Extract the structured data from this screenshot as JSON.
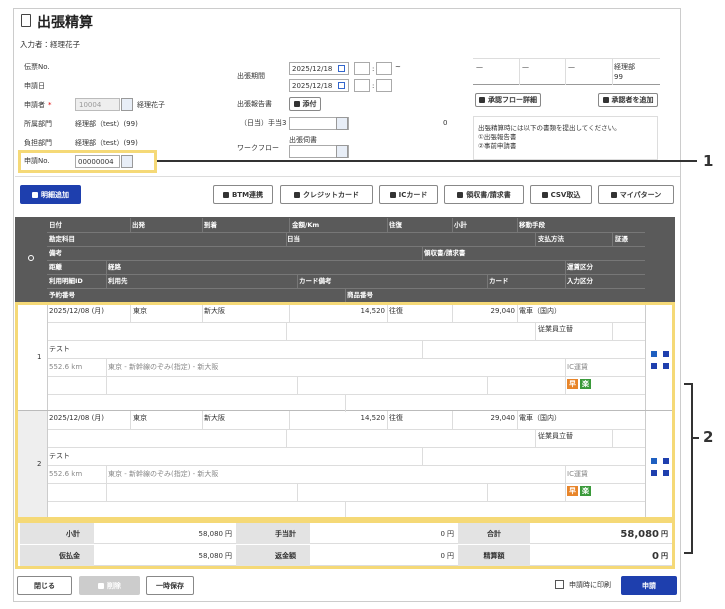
{
  "header": {
    "title": "出張精算",
    "entered_by": "入力者：経理花子"
  },
  "form": {
    "slip_no_label": "伝票No.",
    "apply_date_label": "申請日",
    "applicant_label": "申請者",
    "required_mark": "*",
    "applicant_code": "10004",
    "applicant_name": "経理花子",
    "dept_label": "所属部門",
    "dept_value": "経理部（test）(99)",
    "charge_dept_label": "負担部門",
    "charge_dept_value": "経理部（test）(99)",
    "app_no_label": "申請No.",
    "app_no_value": "00000004",
    "period_label": "出張期間",
    "period_start": "2025/12/18",
    "period_end": "2025/12/18",
    "time_sep": ":",
    "range_sep": "~",
    "report_label": "出張報告書",
    "attach_button": "添付",
    "allowance_label": "（日当）手当3",
    "allowance_value": "0",
    "workflow_label": "ワークフロー",
    "workflow_name": "出張伺書"
  },
  "approval": {
    "steps": [
      "—",
      "—",
      "—"
    ],
    "approver_dept": "経理部",
    "approver_code": "99",
    "detail_button": "承認フロー詳細",
    "add_button": "承認者を追加",
    "notes": [
      "出張精算時には以下の書類を提出してください。",
      "①出張報告書",
      "②事前申請書"
    ]
  },
  "callouts": [
    "1",
    "2"
  ],
  "toolbar": {
    "add_button": "明細追加",
    "buttons": [
      "BTM連携",
      "クレジットカード",
      "ICカード",
      "領収書/請求書",
      "CSV取込",
      "マイパターン"
    ]
  },
  "table": {
    "header_rows": [
      [
        "日付",
        "出発",
        "到着",
        "金額/Km",
        "往復",
        "小計",
        "移動手段"
      ],
      [
        "勘定科目",
        "日当",
        "支払方法",
        "証憑"
      ],
      [
        "備考",
        "領収書/請求書"
      ],
      [
        "距離",
        "経路",
        "運賃区分"
      ],
      [
        "利用明細ID",
        "利用先",
        "カード備考",
        "カード",
        "入力区分"
      ],
      [
        "予約番号",
        "商品番号"
      ]
    ],
    "rows": [
      {
        "index": "1",
        "date": "2025/12/08 (月)",
        "from": "東京",
        "to": "新大阪",
        "amount": "14,520",
        "trip": "往復",
        "subtotal": "29,040",
        "transport": "電車（国内）",
        "payment": "従業員立替",
        "memo": "テスト",
        "distance": "552.6 km",
        "route": "東京 - 新幹線のぞみ(指定) - 新大阪",
        "fare_type": "IC運賃",
        "badges": [
          "早",
          "楽"
        ]
      },
      {
        "index": "2",
        "date": "2025/12/08 (月)",
        "from": "東京",
        "to": "新大阪",
        "amount": "14,520",
        "trip": "往復",
        "subtotal": "29,040",
        "transport": "電車（国内）",
        "payment": "従業員立替",
        "memo": "テスト",
        "distance": "552.6 km",
        "route": "東京 - 新幹線のぞみ(指定) - 新大阪",
        "fare_type": "IC運賃",
        "badges": [
          "早",
          "楽"
        ]
      }
    ]
  },
  "summary": {
    "unit": "円",
    "rows": [
      [
        {
          "label": "小計",
          "value": "58,080"
        },
        {
          "label": "手当計",
          "value": "0"
        },
        {
          "label": "合計",
          "value": "58,080"
        }
      ],
      [
        {
          "label": "仮払金",
          "value": "58,080"
        },
        {
          "label": "返金額",
          "value": "0"
        },
        {
          "label": "精算額",
          "value": "0"
        }
      ]
    ]
  },
  "footer": {
    "close": "閉じる",
    "delete": "削除",
    "save": "一時保存",
    "print_label": "申請時に印刷",
    "submit": "申請"
  }
}
